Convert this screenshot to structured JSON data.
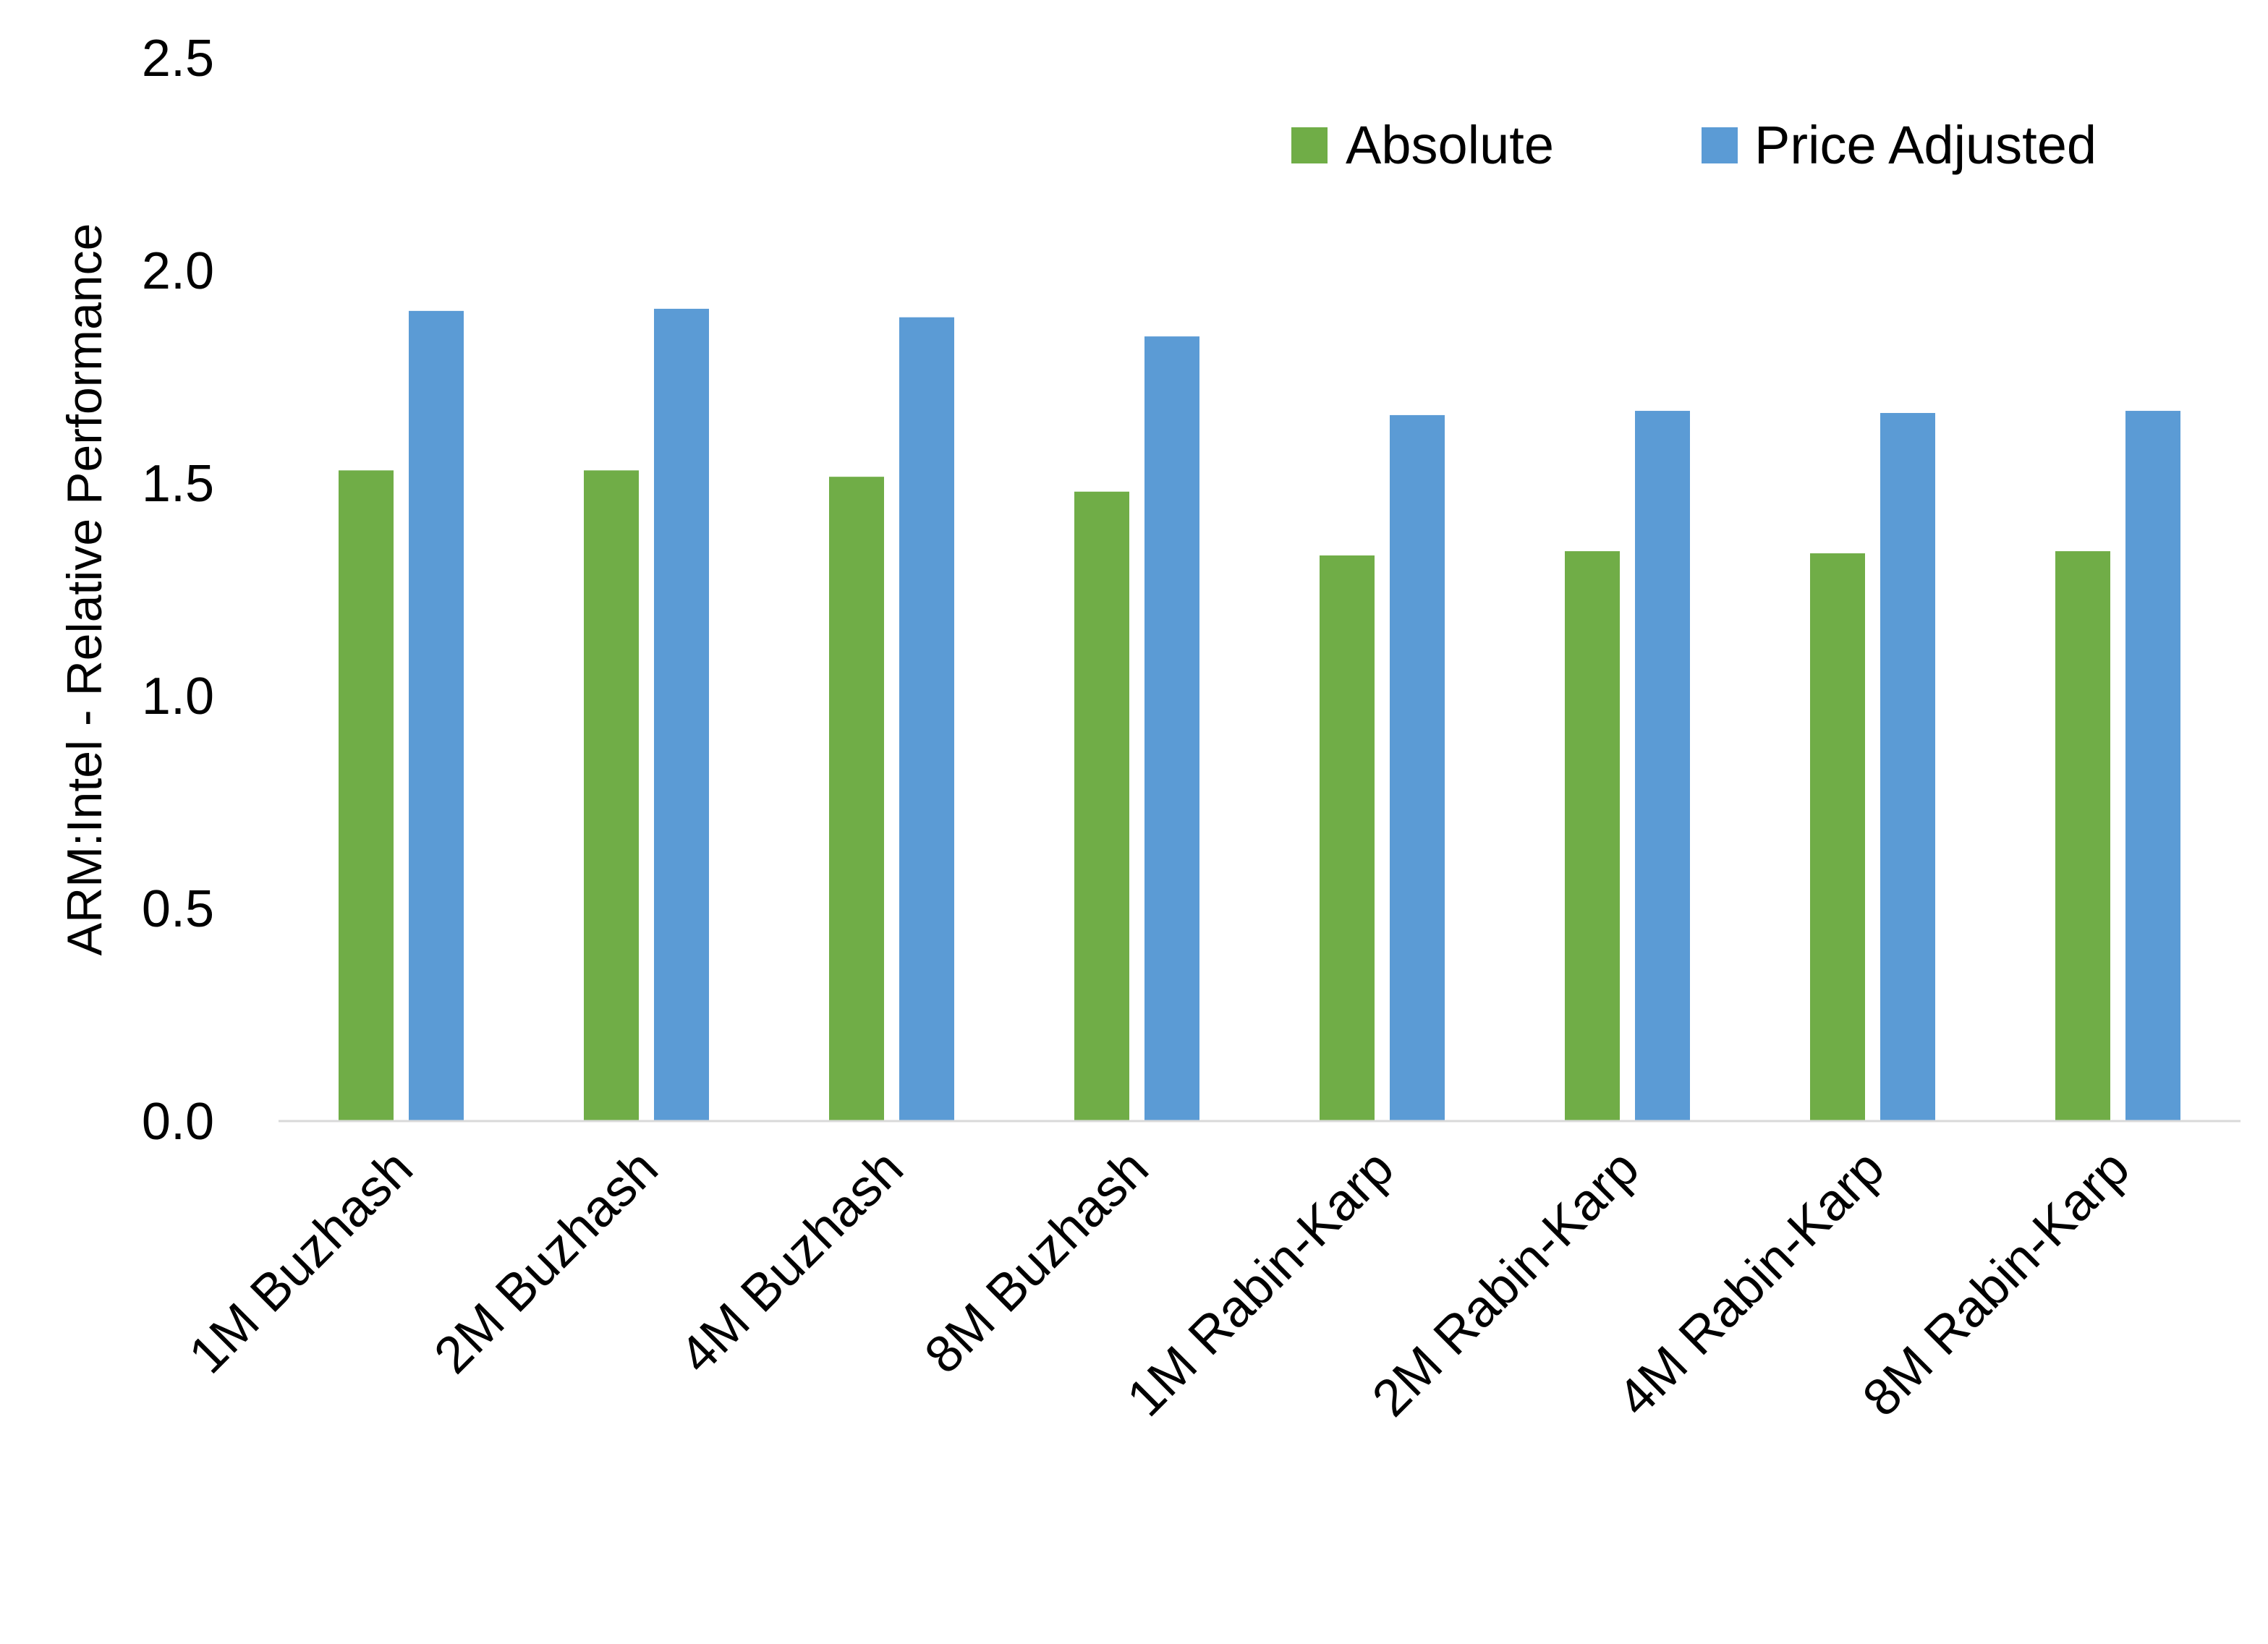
{
  "chart_data": {
    "type": "bar",
    "title": "",
    "xlabel": "",
    "ylabel": "ARM:Intel - Relative Performance",
    "ylim": [
      0,
      2.5
    ],
    "yticks": [
      "0.0",
      "0.5",
      "1.0",
      "1.5",
      "2.0",
      "2.5"
    ],
    "grid": false,
    "legend_position": "top-right",
    "categories": [
      "1M Buzhash",
      "2M Buzhash",
      "4M Buzhash",
      "8M Buzhash",
      "1M Rabin-Karp",
      "2M Rabin-Karp",
      "4M Rabin-Karp",
      "8M Rabin-Karp"
    ],
    "series": [
      {
        "name": "Absolute",
        "color": "#70AD47",
        "values": [
          1.53,
          1.53,
          1.515,
          1.48,
          1.33,
          1.34,
          1.335,
          1.34
        ]
      },
      {
        "name": "Price Adjusted",
        "color": "#5B9BD5",
        "values": [
          1.905,
          1.91,
          1.89,
          1.845,
          1.66,
          1.67,
          1.665,
          1.67
        ]
      }
    ]
  }
}
